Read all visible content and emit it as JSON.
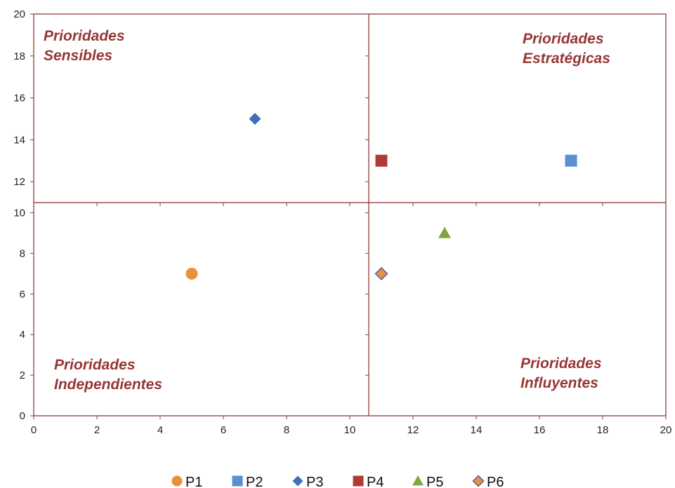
{
  "chart_data": {
    "type": "scatter",
    "xlim": [
      0,
      20
    ],
    "ylim": [
      0,
      20
    ],
    "x_ticks": [
      0,
      2,
      4,
      6,
      8,
      10,
      12,
      14,
      16,
      18,
      20
    ],
    "y_ticks": [
      0,
      2,
      4,
      6,
      8,
      10,
      12,
      14,
      16,
      18,
      20
    ],
    "y_axis_broken_between": [
      10.5,
      11
    ],
    "grid": false,
    "legend_position": "bottom",
    "quadrant_divider": {
      "x": 10.6,
      "y": 10.5
    },
    "quadrant_labels": [
      {
        "lines": [
          "Prioridades",
          "Sensibles"
        ],
        "position": "top-left"
      },
      {
        "lines": [
          "Prioridades",
          "Estratégicas"
        ],
        "position": "top-right"
      },
      {
        "lines": [
          "Prioridades",
          "Independientes"
        ],
        "position": "bottom-left"
      },
      {
        "lines": [
          "Prioridades",
          "Influyentes"
        ],
        "position": "bottom-right"
      }
    ],
    "series": [
      {
        "name": "P1",
        "x": 5,
        "y": 7,
        "marker": "circle",
        "color": "#e8913a"
      },
      {
        "name": "P2",
        "x": 17,
        "y": 13,
        "marker": "square",
        "color": "#5b8fcf"
      },
      {
        "name": "P3",
        "x": 7,
        "y": 15,
        "marker": "diamond",
        "color": "#3f6fb5"
      },
      {
        "name": "P4",
        "x": 11,
        "y": 13,
        "marker": "square",
        "color": "#b03a38"
      },
      {
        "name": "P5",
        "x": 13,
        "y": 9,
        "marker": "triangle",
        "color": "#7fa642"
      },
      {
        "name": "P6",
        "x": 11,
        "y": 7,
        "marker": "diamond",
        "color": "#e8913a",
        "edge_color": "#5561a8"
      }
    ]
  }
}
